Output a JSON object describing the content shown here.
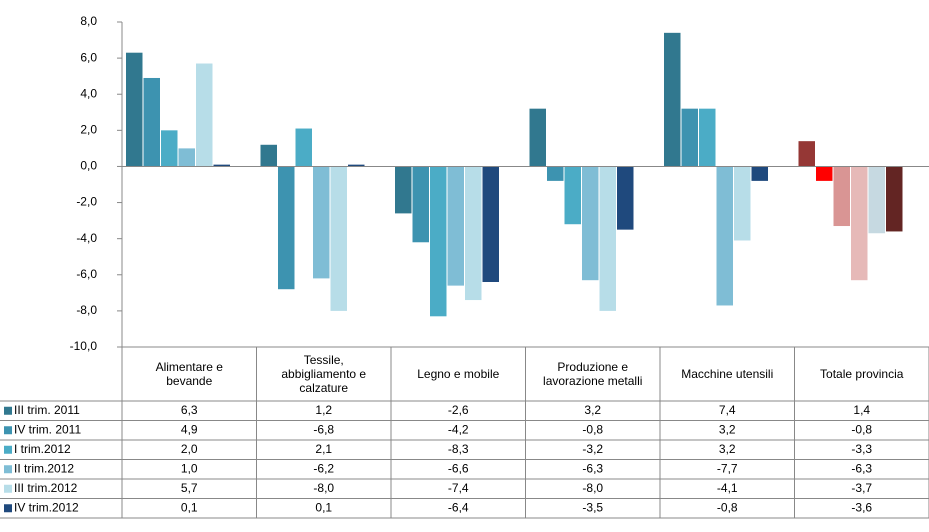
{
  "chart_data": {
    "type": "bar",
    "categories": [
      "Alimentare e bevande",
      "Tessile, abbigliamento e calzature",
      "Legno e mobile",
      "Produzione e lavorazione metalli",
      "Macchine utensili",
      "Totale provincia"
    ],
    "ylim": [
      -10,
      8
    ],
    "yticks": [
      {
        "value": -10,
        "label": "-10,0"
      },
      {
        "value": -8,
        "label": "-8,0"
      },
      {
        "value": -6,
        "label": "-6,0"
      },
      {
        "value": -4,
        "label": "-4,0"
      },
      {
        "value": -2,
        "label": "-2,0"
      },
      {
        "value": 0,
        "label": "0,0"
      },
      {
        "value": 2,
        "label": "2,0"
      },
      {
        "value": 4,
        "label": "4,0"
      },
      {
        "value": 6,
        "label": "6,0"
      },
      {
        "value": 8,
        "label": "8,0"
      }
    ],
    "series": [
      {
        "name": "III trim. 2011",
        "color": "#31788f",
        "colors": [
          "#31788f",
          "#31788f",
          "#31788f",
          "#31788f",
          "#31788f",
          "#953735"
        ],
        "values": [
          6.3,
          1.2,
          -2.6,
          3.2,
          7.4,
          1.4
        ],
        "value_labels": [
          "6,3",
          "1,2",
          "-2,6",
          "3,2",
          "7,4",
          "1,4"
        ]
      },
      {
        "name": "IV trim. 2011",
        "color": "#3d93b0",
        "colors": [
          "#3d93b0",
          "#3d93b0",
          "#3d93b0",
          "#3d93b0",
          "#3d93b0",
          "#ff0000"
        ],
        "values": [
          4.9,
          -6.8,
          -4.2,
          -0.8,
          3.2,
          -0.8
        ],
        "value_labels": [
          "4,9",
          "-6,8",
          "-4,2",
          "-0,8",
          "3,2",
          "-0,8"
        ]
      },
      {
        "name": "I trim.2012",
        "color": "#4bacc6",
        "colors": [
          "#4bacc6",
          "#4bacc6",
          "#4bacc6",
          "#4bacc6",
          "#4bacc6",
          "#d99594"
        ],
        "values": [
          2.0,
          2.1,
          -8.3,
          -3.2,
          3.2,
          -3.3
        ],
        "value_labels": [
          "2,0",
          "2,1",
          "-8,3",
          "-3,2",
          "3,2",
          "-3,3"
        ]
      },
      {
        "name": "II trim.2012",
        "color": "#7fbdd5",
        "colors": [
          "#7fbdd5",
          "#7fbdd5",
          "#7fbdd5",
          "#7fbdd5",
          "#7fbdd5",
          "#e6b9b8"
        ],
        "values": [
          1.0,
          -6.2,
          -6.6,
          -6.3,
          -7.7,
          -6.3
        ],
        "value_labels": [
          "1,0",
          "-6,2",
          "-6,6",
          "-6,3",
          "-7,7",
          "-6,3"
        ]
      },
      {
        "name": "III trim.2012",
        "color": "#b7dde8",
        "colors": [
          "#b7dde8",
          "#b7dde8",
          "#b7dde8",
          "#b7dde8",
          "#b7dde8",
          "#c6d9e1"
        ],
        "values": [
          5.7,
          -8.0,
          -7.4,
          -8.0,
          -4.1,
          -3.7
        ],
        "value_labels": [
          "5,7",
          "-8,0",
          "-7,4",
          "-8,0",
          "-4,1",
          "-3,7"
        ]
      },
      {
        "name": "IV trim.2012",
        "color": "#1f497d",
        "colors": [
          "#1f497d",
          "#1f497d",
          "#1f497d",
          "#1f497d",
          "#1f497d",
          "#632523"
        ],
        "values": [
          0.1,
          0.1,
          -6.4,
          -3.5,
          -0.8,
          -3.6
        ],
        "value_labels": [
          "0,1",
          "0,1",
          "-6,4",
          "-3,5",
          "-0,8",
          "-3,6"
        ]
      }
    ]
  }
}
